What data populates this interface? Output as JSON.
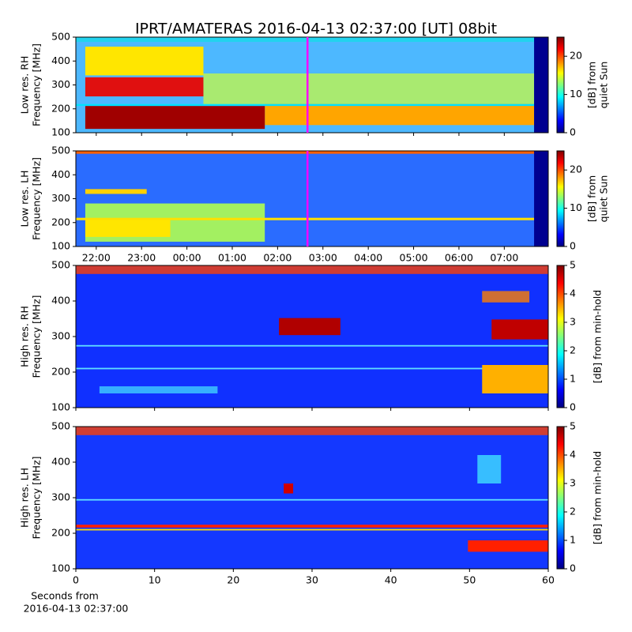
{
  "chart_data": [
    {
      "type": "heatmap",
      "title": "IPRT/AMATERAS 2016-04-13 02:37:00 [UT]   08bit",
      "ylabel": [
        "Low res. RH",
        "Frequency [MHz]"
      ],
      "ylim": [
        100,
        500
      ],
      "yticks": [
        100,
        200,
        300,
        400,
        500
      ],
      "clim": [
        0,
        25
      ],
      "cticks": [
        0,
        10,
        20
      ],
      "clabel": [
        "[dB] from",
        "quiet Sun"
      ]
    },
    {
      "type": "heatmap",
      "ylabel": [
        "Low res. LH",
        "Frequency [MHz]"
      ],
      "ylim": [
        100,
        500
      ],
      "yticks": [
        100,
        200,
        300,
        400,
        500
      ],
      "xlim": [
        21.55,
        31.97
      ],
      "xticks": [
        {
          "value": 22,
          "label": "22:00"
        },
        {
          "value": 23,
          "label": "23:00"
        },
        {
          "value": 24,
          "label": "00:00"
        },
        {
          "value": 25,
          "label": "01:00"
        },
        {
          "value": 26,
          "label": "02:00"
        },
        {
          "value": 27,
          "label": "03:00"
        },
        {
          "value": 28,
          "label": "04:00"
        },
        {
          "value": 29,
          "label": "05:00"
        },
        {
          "value": 30,
          "label": "06:00"
        },
        {
          "value": 31,
          "label": "07:00"
        }
      ],
      "clim": [
        0,
        25
      ],
      "cticks": [
        0,
        10,
        20
      ],
      "clabel": [
        "[dB] from",
        "quiet Sun"
      ]
    },
    {
      "type": "heatmap",
      "ylabel": [
        "High res. RH",
        "Frequency [MHz]"
      ],
      "ylim": [
        100,
        500
      ],
      "yticks": [
        100,
        200,
        300,
        400,
        500
      ],
      "clim": [
        0,
        5
      ],
      "cticks": [
        0,
        1,
        2,
        3,
        4,
        5
      ],
      "clabel": [
        "[dB] from min-hold"
      ]
    },
    {
      "type": "heatmap",
      "ylabel": [
        "High res. LH",
        "Frequency [MHz]"
      ],
      "ylim": [
        100,
        500
      ],
      "yticks": [
        100,
        200,
        300,
        400,
        500
      ],
      "xlim": [
        0,
        60
      ],
      "xticks": [
        0,
        10,
        20,
        30,
        40,
        50,
        60
      ],
      "xlabel": [
        "Seconds from",
        "2016-04-13 02:37:00"
      ],
      "clim": [
        0,
        5
      ],
      "cticks": [
        0,
        1,
        2,
        3,
        4,
        5
      ],
      "clabel": [
        "[dB] from min-hold"
      ]
    }
  ]
}
